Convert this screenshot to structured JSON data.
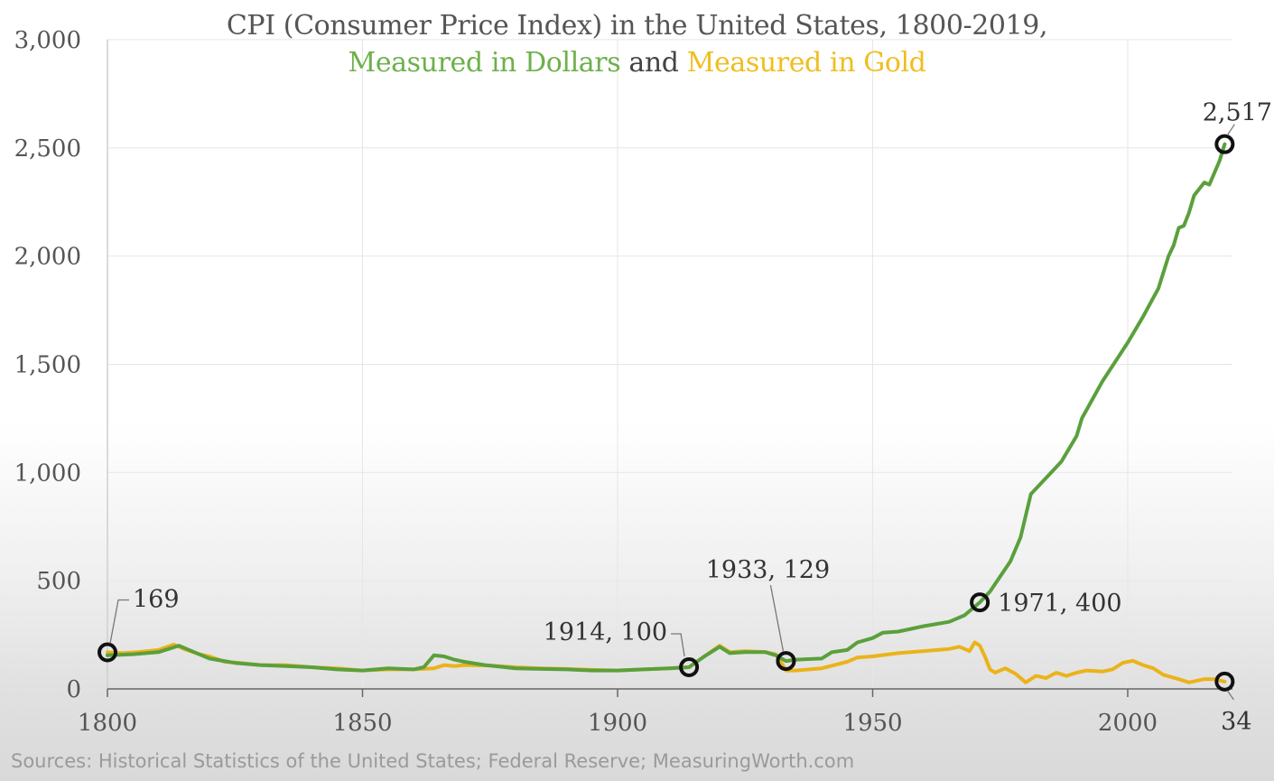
{
  "chart_data": {
    "type": "line",
    "title_line1": "CPI (Consumer Price Index) in the United States, 1800-2019,",
    "title_line2_part1": "Measured in Dollars",
    "title_line2_part2": " and ",
    "title_line2_part3": "Measured in Gold",
    "xlabel": "",
    "ylabel": "",
    "xlim": [
      1800,
      2021
    ],
    "ylim": [
      0,
      3000
    ],
    "x_ticks": [
      {
        "value": 1800,
        "label": "1800"
      },
      {
        "value": 1850,
        "label": "1850"
      },
      {
        "value": 1900,
        "label": "1900"
      },
      {
        "value": 1950,
        "label": "1950"
      },
      {
        "value": 2000,
        "label": "2000"
      }
    ],
    "y_ticks": [
      {
        "value": 0,
        "label": "0"
      },
      {
        "value": 500,
        "label": "500"
      },
      {
        "value": 1000,
        "label": "1,000"
      },
      {
        "value": 1500,
        "label": "1,500"
      },
      {
        "value": 2000,
        "label": "2,000"
      },
      {
        "value": 2500,
        "label": "2,500"
      },
      {
        "value": 3000,
        "label": "3,000"
      }
    ],
    "series": [
      {
        "name": "Measured in Dollars",
        "color": "#5aa03c",
        "points": [
          [
            1800,
            155
          ],
          [
            1805,
            160
          ],
          [
            1810,
            170
          ],
          [
            1814,
            200
          ],
          [
            1817,
            170
          ],
          [
            1820,
            140
          ],
          [
            1825,
            120
          ],
          [
            1830,
            110
          ],
          [
            1835,
            105
          ],
          [
            1840,
            100
          ],
          [
            1845,
            90
          ],
          [
            1850,
            85
          ],
          [
            1855,
            95
          ],
          [
            1860,
            90
          ],
          [
            1862,
            100
          ],
          [
            1864,
            155
          ],
          [
            1866,
            150
          ],
          [
            1868,
            135
          ],
          [
            1870,
            125
          ],
          [
            1874,
            110
          ],
          [
            1878,
            100
          ],
          [
            1880,
            95
          ],
          [
            1885,
            92
          ],
          [
            1890,
            90
          ],
          [
            1895,
            85
          ],
          [
            1900,
            85
          ],
          [
            1905,
            90
          ],
          [
            1910,
            95
          ],
          [
            1914,
            100
          ],
          [
            1917,
            150
          ],
          [
            1920,
            195
          ],
          [
            1922,
            165
          ],
          [
            1925,
            170
          ],
          [
            1929,
            170
          ],
          [
            1931,
            155
          ],
          [
            1933,
            129
          ],
          [
            1935,
            135
          ],
          [
            1940,
            140
          ],
          [
            1942,
            170
          ],
          [
            1945,
            180
          ],
          [
            1947,
            215
          ],
          [
            1950,
            235
          ],
          [
            1952,
            260
          ],
          [
            1955,
            265
          ],
          [
            1960,
            290
          ],
          [
            1965,
            310
          ],
          [
            1968,
            340
          ],
          [
            1971,
            400
          ],
          [
            1973,
            450
          ],
          [
            1975,
            520
          ],
          [
            1977,
            590
          ],
          [
            1979,
            700
          ],
          [
            1980,
            800
          ],
          [
            1981,
            900
          ],
          [
            1983,
            950
          ],
          [
            1985,
            1000
          ],
          [
            1987,
            1050
          ],
          [
            1990,
            1170
          ],
          [
            1991,
            1250
          ],
          [
            1995,
            1420
          ],
          [
            2000,
            1600
          ],
          [
            2003,
            1720
          ],
          [
            2006,
            1850
          ],
          [
            2008,
            2000
          ],
          [
            2009,
            2050
          ],
          [
            2010,
            2130
          ],
          [
            2011,
            2140
          ],
          [
            2012,
            2200
          ],
          [
            2013,
            2280
          ],
          [
            2015,
            2340
          ],
          [
            2016,
            2330
          ],
          [
            2018,
            2440
          ],
          [
            2019,
            2517
          ]
        ]
      },
      {
        "name": "Measured in Gold",
        "color": "#ebb31a",
        "points": [
          [
            1800,
            169
          ],
          [
            1803,
            165
          ],
          [
            1806,
            170
          ],
          [
            1810,
            180
          ],
          [
            1813,
            205
          ],
          [
            1815,
            185
          ],
          [
            1818,
            160
          ],
          [
            1820,
            150
          ],
          [
            1823,
            125
          ],
          [
            1826,
            120
          ],
          [
            1830,
            110
          ],
          [
            1835,
            110
          ],
          [
            1840,
            100
          ],
          [
            1845,
            95
          ],
          [
            1850,
            85
          ],
          [
            1855,
            90
          ],
          [
            1860,
            90
          ],
          [
            1864,
            95
          ],
          [
            1866,
            110
          ],
          [
            1868,
            105
          ],
          [
            1870,
            110
          ],
          [
            1875,
            108
          ],
          [
            1880,
            100
          ],
          [
            1885,
            95
          ],
          [
            1890,
            92
          ],
          [
            1895,
            88
          ],
          [
            1900,
            85
          ],
          [
            1905,
            90
          ],
          [
            1910,
            95
          ],
          [
            1914,
            100
          ],
          [
            1917,
            150
          ],
          [
            1920,
            200
          ],
          [
            1922,
            170
          ],
          [
            1925,
            175
          ],
          [
            1929,
            170
          ],
          [
            1931,
            160
          ],
          [
            1933,
            85
          ],
          [
            1935,
            85
          ],
          [
            1940,
            95
          ],
          [
            1945,
            125
          ],
          [
            1947,
            145
          ],
          [
            1950,
            150
          ],
          [
            1955,
            165
          ],
          [
            1960,
            175
          ],
          [
            1965,
            185
          ],
          [
            1967,
            195
          ],
          [
            1969,
            175
          ],
          [
            1970,
            215
          ],
          [
            1971,
            200
          ],
          [
            1972,
            150
          ],
          [
            1973,
            90
          ],
          [
            1974,
            75
          ],
          [
            1976,
            95
          ],
          [
            1978,
            70
          ],
          [
            1980,
            30
          ],
          [
            1982,
            60
          ],
          [
            1984,
            50
          ],
          [
            1986,
            75
          ],
          [
            1988,
            60
          ],
          [
            1990,
            75
          ],
          [
            1992,
            85
          ],
          [
            1995,
            80
          ],
          [
            1997,
            90
          ],
          [
            1999,
            120
          ],
          [
            2001,
            130
          ],
          [
            2003,
            110
          ],
          [
            2005,
            95
          ],
          [
            2007,
            65
          ],
          [
            2010,
            45
          ],
          [
            2012,
            30
          ],
          [
            2015,
            45
          ],
          [
            2017,
            45
          ],
          [
            2019,
            34
          ]
        ]
      }
    ],
    "markers": [
      {
        "series": "Measured in Gold",
        "x": 1800,
        "y": 169,
        "label": "169"
      },
      {
        "series": "Measured in Dollars",
        "x": 1914,
        "y": 100,
        "label": "1914, 100"
      },
      {
        "series": "Measured in Dollars",
        "x": 1933,
        "y": 129,
        "label": "1933, 129"
      },
      {
        "series": "Measured in Dollars",
        "x": 1971,
        "y": 400,
        "label": "1971, 400"
      },
      {
        "series": "Measured in Dollars",
        "x": 2019,
        "y": 2517,
        "label": "2,517"
      },
      {
        "series": "Measured in Gold",
        "x": 2019,
        "y": 34,
        "label": "34"
      }
    ],
    "source": "Sources: Historical Statistics of the United States; Federal Reserve; MeasuringWorth.com"
  }
}
